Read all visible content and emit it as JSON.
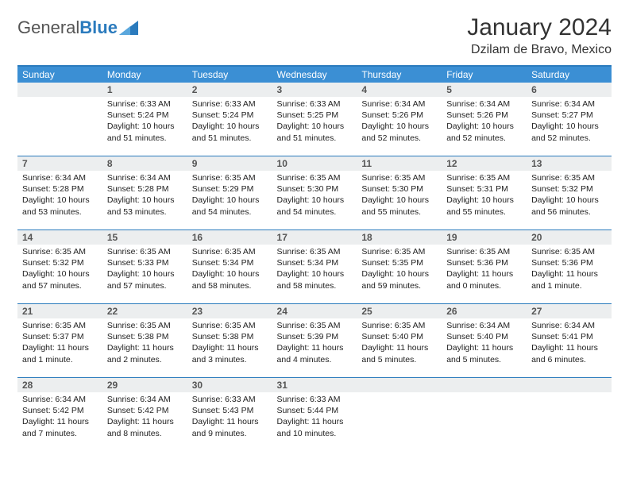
{
  "brand": {
    "name1": "General",
    "name2": "Blue"
  },
  "title": "January 2024",
  "location": "Dzilam de Bravo, Mexico",
  "day_headers": [
    "Sunday",
    "Monday",
    "Tuesday",
    "Wednesday",
    "Thursday",
    "Friday",
    "Saturday"
  ],
  "colors": {
    "header_bg": "#3b8fd4",
    "header_border": "#2b7bbd",
    "daynum_bg": "#eceeef"
  },
  "weeks": [
    [
      null,
      {
        "n": "1",
        "sr": "6:33 AM",
        "ss": "5:24 PM",
        "dl": "10 hours and 51 minutes."
      },
      {
        "n": "2",
        "sr": "6:33 AM",
        "ss": "5:24 PM",
        "dl": "10 hours and 51 minutes."
      },
      {
        "n": "3",
        "sr": "6:33 AM",
        "ss": "5:25 PM",
        "dl": "10 hours and 51 minutes."
      },
      {
        "n": "4",
        "sr": "6:34 AM",
        "ss": "5:26 PM",
        "dl": "10 hours and 52 minutes."
      },
      {
        "n": "5",
        "sr": "6:34 AM",
        "ss": "5:26 PM",
        "dl": "10 hours and 52 minutes."
      },
      {
        "n": "6",
        "sr": "6:34 AM",
        "ss": "5:27 PM",
        "dl": "10 hours and 52 minutes."
      }
    ],
    [
      {
        "n": "7",
        "sr": "6:34 AM",
        "ss": "5:28 PM",
        "dl": "10 hours and 53 minutes."
      },
      {
        "n": "8",
        "sr": "6:34 AM",
        "ss": "5:28 PM",
        "dl": "10 hours and 53 minutes."
      },
      {
        "n": "9",
        "sr": "6:35 AM",
        "ss": "5:29 PM",
        "dl": "10 hours and 54 minutes."
      },
      {
        "n": "10",
        "sr": "6:35 AM",
        "ss": "5:30 PM",
        "dl": "10 hours and 54 minutes."
      },
      {
        "n": "11",
        "sr": "6:35 AM",
        "ss": "5:30 PM",
        "dl": "10 hours and 55 minutes."
      },
      {
        "n": "12",
        "sr": "6:35 AM",
        "ss": "5:31 PM",
        "dl": "10 hours and 55 minutes."
      },
      {
        "n": "13",
        "sr": "6:35 AM",
        "ss": "5:32 PM",
        "dl": "10 hours and 56 minutes."
      }
    ],
    [
      {
        "n": "14",
        "sr": "6:35 AM",
        "ss": "5:32 PM",
        "dl": "10 hours and 57 minutes."
      },
      {
        "n": "15",
        "sr": "6:35 AM",
        "ss": "5:33 PM",
        "dl": "10 hours and 57 minutes."
      },
      {
        "n": "16",
        "sr": "6:35 AM",
        "ss": "5:34 PM",
        "dl": "10 hours and 58 minutes."
      },
      {
        "n": "17",
        "sr": "6:35 AM",
        "ss": "5:34 PM",
        "dl": "10 hours and 58 minutes."
      },
      {
        "n": "18",
        "sr": "6:35 AM",
        "ss": "5:35 PM",
        "dl": "10 hours and 59 minutes."
      },
      {
        "n": "19",
        "sr": "6:35 AM",
        "ss": "5:36 PM",
        "dl": "11 hours and 0 minutes."
      },
      {
        "n": "20",
        "sr": "6:35 AM",
        "ss": "5:36 PM",
        "dl": "11 hours and 1 minute."
      }
    ],
    [
      {
        "n": "21",
        "sr": "6:35 AM",
        "ss": "5:37 PM",
        "dl": "11 hours and 1 minute."
      },
      {
        "n": "22",
        "sr": "6:35 AM",
        "ss": "5:38 PM",
        "dl": "11 hours and 2 minutes."
      },
      {
        "n": "23",
        "sr": "6:35 AM",
        "ss": "5:38 PM",
        "dl": "11 hours and 3 minutes."
      },
      {
        "n": "24",
        "sr": "6:35 AM",
        "ss": "5:39 PM",
        "dl": "11 hours and 4 minutes."
      },
      {
        "n": "25",
        "sr": "6:35 AM",
        "ss": "5:40 PM",
        "dl": "11 hours and 5 minutes."
      },
      {
        "n": "26",
        "sr": "6:34 AM",
        "ss": "5:40 PM",
        "dl": "11 hours and 5 minutes."
      },
      {
        "n": "27",
        "sr": "6:34 AM",
        "ss": "5:41 PM",
        "dl": "11 hours and 6 minutes."
      }
    ],
    [
      {
        "n": "28",
        "sr": "6:34 AM",
        "ss": "5:42 PM",
        "dl": "11 hours and 7 minutes."
      },
      {
        "n": "29",
        "sr": "6:34 AM",
        "ss": "5:42 PM",
        "dl": "11 hours and 8 minutes."
      },
      {
        "n": "30",
        "sr": "6:33 AM",
        "ss": "5:43 PM",
        "dl": "11 hours and 9 minutes."
      },
      {
        "n": "31",
        "sr": "6:33 AM",
        "ss": "5:44 PM",
        "dl": "11 hours and 10 minutes."
      },
      null,
      null,
      null
    ]
  ],
  "labels": {
    "sunrise": "Sunrise: ",
    "sunset": "Sunset: ",
    "daylight": "Daylight: "
  }
}
